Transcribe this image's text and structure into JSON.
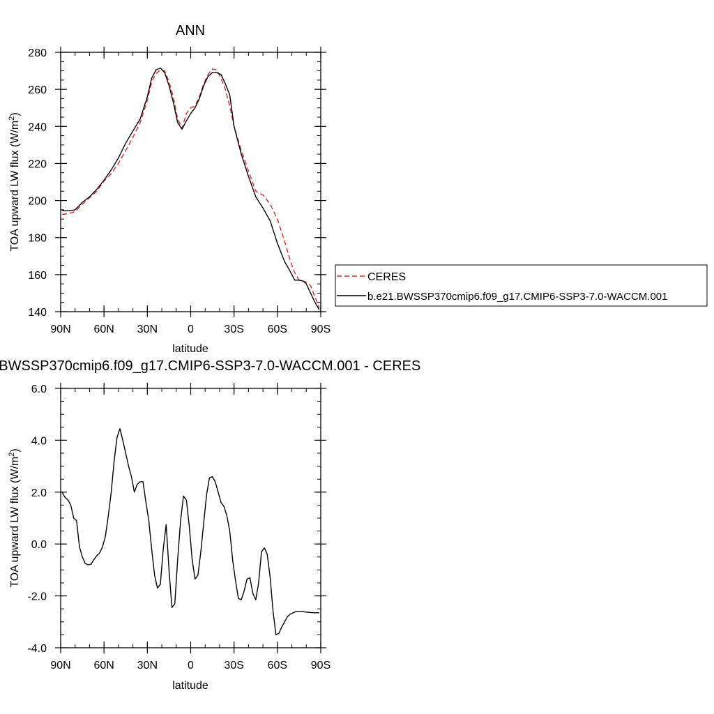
{
  "chart_data": [
    {
      "type": "line",
      "title": "ANN",
      "xlabel": "latitude",
      "ylabel": "TOA upward LW flux (W/m",
      "ylabel_sup": "2",
      "ylabel_tail": ")",
      "xlim": [
        -90,
        90
      ],
      "ylim": [
        140,
        280
      ],
      "x_ticks": [
        -90,
        -60,
        -30,
        0,
        30,
        60,
        90
      ],
      "x_tick_labels": [
        "90N",
        "60N",
        "30N",
        "0",
        "30S",
        "60S",
        "90S"
      ],
      "y_ticks": [
        140,
        160,
        180,
        200,
        220,
        240,
        260,
        280
      ],
      "y_tick_labels": [
        "140",
        "160",
        "180",
        "200",
        "220",
        "240",
        "260",
        "280"
      ],
      "legend": "right",
      "series": [
        {
          "name": "CERES",
          "color": "#d62728",
          "dash": true,
          "x": [
            -89,
            -84,
            -80,
            -75,
            -70,
            -65,
            -60,
            -55,
            -50,
            -45,
            -40,
            -35,
            -30,
            -27,
            -24,
            -21,
            -18,
            -15,
            -12,
            -9,
            -6,
            -3,
            0,
            3,
            6,
            9,
            12,
            15,
            18,
            21,
            24,
            27,
            30,
            35,
            40,
            45,
            50,
            55,
            60,
            65,
            68,
            70,
            72,
            75,
            78,
            80,
            83,
            86,
            89
          ],
          "y": [
            192.5,
            193,
            194,
            198,
            201.5,
            205,
            210.5,
            214.5,
            220,
            227,
            234,
            242,
            254,
            264,
            268.5,
            270.5,
            270,
            264,
            256,
            244,
            239,
            247,
            250,
            251,
            256,
            263,
            268,
            271,
            270.5,
            266,
            260,
            251,
            240,
            227,
            216,
            205,
            203,
            198,
            190,
            178,
            170,
            165,
            161,
            157,
            156.5,
            156,
            154,
            148,
            142
          ]
        },
        {
          "name": "b.e21.BWSSP370cmip6.f09_g17.CMIP6-SSP3-7.0-WACCM.001",
          "color": "#000000",
          "dash": false,
          "x": [
            -89,
            -84,
            -80,
            -75,
            -70,
            -65,
            -60,
            -55,
            -50,
            -45,
            -40,
            -35,
            -30,
            -27,
            -24,
            -21,
            -18,
            -15,
            -12,
            -9,
            -6,
            -3,
            0,
            3,
            6,
            9,
            12,
            15,
            18,
            21,
            24,
            27,
            30,
            35,
            40,
            45,
            50,
            55,
            60,
            65,
            68,
            70,
            72,
            75,
            78,
            80,
            83,
            86,
            89
          ],
          "y": [
            194.5,
            194.5,
            195,
            199,
            202,
            206,
            211,
            216.5,
            223,
            231,
            237.5,
            244,
            256,
            266,
            270.5,
            271.5,
            269,
            262,
            253,
            242,
            238.5,
            243,
            247,
            250,
            255,
            262,
            267,
            269,
            269,
            268,
            263,
            257,
            240,
            225,
            213,
            202,
            196,
            189,
            177,
            167,
            163,
            160,
            157,
            157,
            156.5,
            155,
            150,
            145,
            141
          ]
        }
      ]
    },
    {
      "type": "line",
      "title": "b.e21.BWSSP370cmip6.f09_g17.CMIP6-SSP3-7.0-WACCM.001 - CERES",
      "xlabel": "latitude",
      "ylabel": "TOA upward LW flux (W/m",
      "ylabel_sup": "2",
      "ylabel_tail": ")",
      "xlim": [
        -90,
        90
      ],
      "ylim": [
        -4,
        6
      ],
      "x_ticks": [
        -90,
        -60,
        -30,
        0,
        30,
        60,
        90
      ],
      "x_tick_labels": [
        "90N",
        "60N",
        "30N",
        "0",
        "30S",
        "60S",
        "90S"
      ],
      "y_ticks": [
        -4,
        -2,
        0,
        2,
        4,
        6
      ],
      "y_tick_labels": [
        "-4.0",
        "-2.0",
        "0.0",
        "2.0",
        "4.0",
        "6.0"
      ],
      "series": [
        {
          "color": "#000000",
          "dash": false,
          "x": [
            -89,
            -87,
            -85,
            -83,
            -81,
            -79,
            -77,
            -75,
            -73,
            -71,
            -69,
            -67,
            -65,
            -63,
            -61,
            -59,
            -57,
            -55,
            -53,
            -51,
            -49,
            -47,
            -45,
            -43,
            -41,
            -39,
            -37,
            -35,
            -33,
            -31,
            -29,
            -27,
            -25,
            -23,
            -21,
            -19,
            -17,
            -15,
            -13,
            -11,
            -9,
            -7,
            -5,
            -3,
            -1,
            1,
            3,
            5,
            7,
            9,
            11,
            13,
            15,
            17,
            19,
            21,
            23,
            25,
            27,
            29,
            31,
            33,
            35,
            37,
            39,
            41,
            43,
            45,
            47,
            49,
            51,
            53,
            55,
            57,
            59,
            61,
            63,
            65,
            67,
            69,
            71,
            73,
            75,
            77,
            79,
            81,
            83,
            85,
            87,
            89
          ],
          "y": [
            2.0,
            1.8,
            1.7,
            1.5,
            1.0,
            0.9,
            -0.1,
            -0.5,
            -0.75,
            -0.8,
            -0.78,
            -0.6,
            -0.45,
            -0.35,
            -0.1,
            0.3,
            1.1,
            2.0,
            3.2,
            4.1,
            4.45,
            4.0,
            3.5,
            3.0,
            2.6,
            2.0,
            2.3,
            2.4,
            2.4,
            1.6,
            0.9,
            -0.2,
            -1.2,
            -1.7,
            -1.55,
            -0.2,
            0.75,
            -1.0,
            -2.45,
            -2.3,
            -0.6,
            0.9,
            1.85,
            1.7,
            0.7,
            -0.6,
            -1.35,
            -1.2,
            -0.3,
            0.8,
            1.9,
            2.55,
            2.6,
            2.4,
            2.0,
            1.6,
            1.45,
            1.1,
            0.5,
            -0.6,
            -1.4,
            -2.1,
            -2.15,
            -1.8,
            -1.35,
            -1.3,
            -1.9,
            -2.15,
            -1.5,
            -0.3,
            -0.15,
            -0.4,
            -1.3,
            -2.6,
            -3.5,
            -3.45,
            -3.2,
            -3.0,
            -2.8,
            -2.7,
            -2.65,
            -2.6,
            -2.6,
            -2.6,
            -2.62,
            -2.63,
            -2.64,
            -2.65,
            -2.65,
            -2.65
          ]
        }
      ]
    }
  ]
}
